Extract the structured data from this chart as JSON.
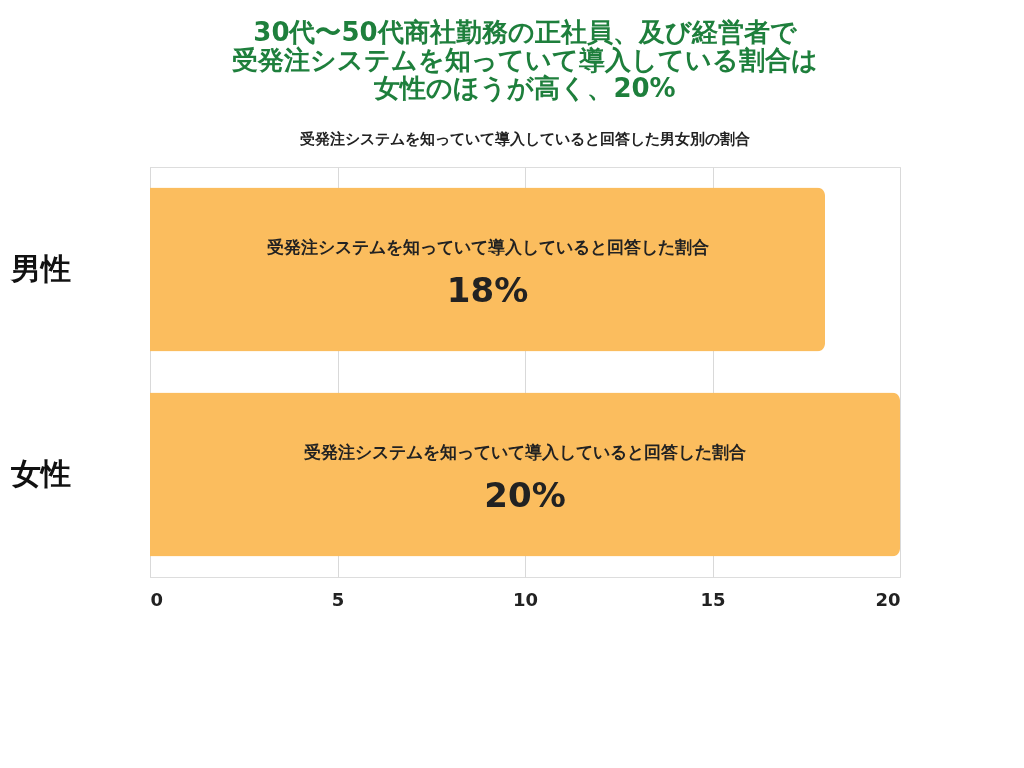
{
  "chart_data": {
    "type": "bar",
    "orientation": "horizontal",
    "title": [
      "30代〜50代商社勤務の正社員、及び経営者で",
      "受発注システムを知っていて導入している割合は",
      "女性のほうが高く、20%"
    ],
    "subtitle": "受発注システムを知っていて導入していると回答した男女別の割合",
    "categories": [
      "男性",
      "女性"
    ],
    "values": [
      18,
      20
    ],
    "value_labels": [
      "18%",
      "20%"
    ],
    "color": "#fbbd5e",
    "annotations": [
      "受発注システムを知っていて導入していると回答した割合",
      "受発注システムを知っていて導入していると回答した割合"
    ],
    "xlim": [
      0,
      20
    ],
    "xticks": [
      0,
      5,
      10,
      15,
      20
    ],
    "grid": "x"
  }
}
